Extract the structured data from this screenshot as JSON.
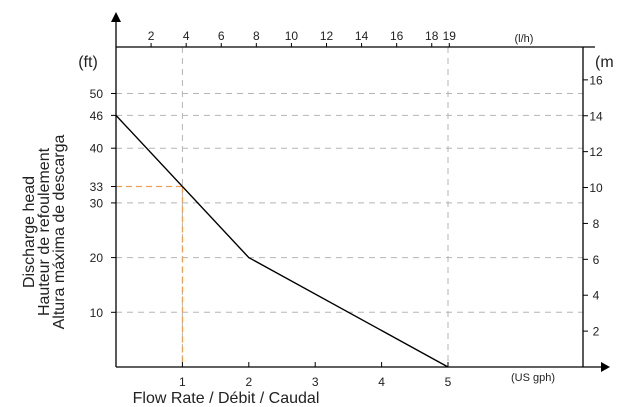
{
  "chart_data": {
    "type": "line",
    "x_bottom": {
      "label": "Flow Rate / Débit / Caudal",
      "unit": "(US gph)",
      "range": [
        0,
        5.25
      ],
      "ticks": [
        1,
        2,
        3,
        4,
        5
      ]
    },
    "x_top": {
      "unit": "(l/h)",
      "ticks": [
        2,
        4,
        6,
        8,
        10,
        12,
        14,
        16,
        18,
        19
      ]
    },
    "y_left": {
      "labels": [
        "Discharge head",
        "Hauteur de refoulement",
        "Altura máxima de descarga"
      ],
      "unit": "(ft)",
      "range": [
        0,
        56
      ],
      "ticks": [
        10,
        20,
        30,
        33,
        40,
        46,
        50
      ]
    },
    "y_right": {
      "unit": "(m",
      "ticks": [
        2,
        4,
        6,
        8,
        10,
        12,
        14,
        16
      ]
    },
    "series": [
      {
        "x": [
          0,
          2,
          5
        ],
        "y": [
          46,
          20,
          0
        ],
        "color": "#000000"
      }
    ],
    "annotation": {
      "x": 1,
      "y": 33,
      "color": "#f0a050"
    },
    "grid": true,
    "grid_style": "dashed"
  }
}
